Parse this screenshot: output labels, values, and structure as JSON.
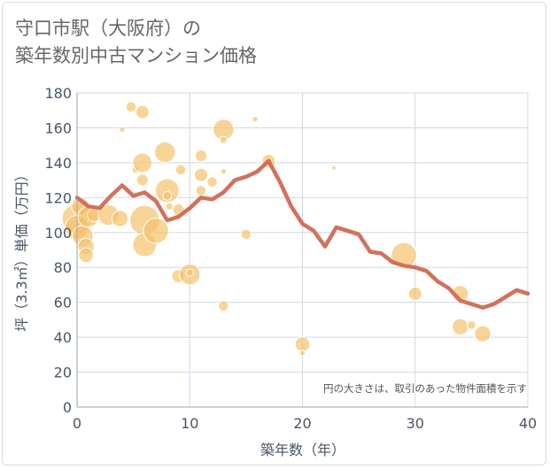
{
  "title_lines": [
    "守口市駅（大阪府）の",
    "築年数別中古マンション価格"
  ],
  "chart_data": {
    "type": "scatter",
    "xlabel": "築年数（年）",
    "ylabel": "坪（3.3㎡）単価（万円）",
    "xlim": [
      0,
      40
    ],
    "ylim": [
      0,
      180
    ],
    "x_ticks": [
      0,
      10,
      20,
      30,
      40
    ],
    "y_ticks": [
      0,
      20,
      40,
      60,
      80,
      100,
      120,
      140,
      160,
      180
    ],
    "grid": true,
    "note": "円の大きさは、取引のあった物件面積を示す",
    "colors": {
      "bubble": "#f5c26b",
      "line": "#d4705a",
      "grid": "#cfd8e3",
      "axis_text": "#4a5568"
    },
    "bubbles": [
      {
        "x": 0,
        "y": 108,
        "size": 18
      },
      {
        "x": 0,
        "y": 103,
        "size": 14
      },
      {
        "x": 0.3,
        "y": 115,
        "size": 10
      },
      {
        "x": 0.5,
        "y": 98,
        "size": 12
      },
      {
        "x": 0.8,
        "y": 92,
        "size": 9
      },
      {
        "x": 0.8,
        "y": 87,
        "size": 8
      },
      {
        "x": 1,
        "y": 109,
        "size": 12
      },
      {
        "x": 1.5,
        "y": 110,
        "size": 7
      },
      {
        "x": 2.8,
        "y": 110,
        "size": 12
      },
      {
        "x": 3.8,
        "y": 108,
        "size": 9
      },
      {
        "x": 4,
        "y": 159,
        "size": 2
      },
      {
        "x": 4.8,
        "y": 172,
        "size": 5
      },
      {
        "x": 5.2,
        "y": 136,
        "size": 3
      },
      {
        "x": 5.8,
        "y": 169,
        "size": 7
      },
      {
        "x": 5.8,
        "y": 140,
        "size": 11
      },
      {
        "x": 5.8,
        "y": 130,
        "size": 6
      },
      {
        "x": 6,
        "y": 107,
        "size": 18
      },
      {
        "x": 6,
        "y": 93,
        "size": 14
      },
      {
        "x": 7,
        "y": 101,
        "size": 15
      },
      {
        "x": 7.8,
        "y": 146,
        "size": 12
      },
      {
        "x": 8,
        "y": 124,
        "size": 14
      },
      {
        "x": 8,
        "y": 121,
        "size": 4
      },
      {
        "x": 8.2,
        "y": 115,
        "size": 3
      },
      {
        "x": 9,
        "y": 113,
        "size": 6
      },
      {
        "x": 9.2,
        "y": 136,
        "size": 5
      },
      {
        "x": 9,
        "y": 75,
        "size": 7
      },
      {
        "x": 10,
        "y": 76,
        "size": 12
      },
      {
        "x": 10,
        "y": 77,
        "size": 3
      },
      {
        "x": 11,
        "y": 144,
        "size": 6
      },
      {
        "x": 11,
        "y": 133,
        "size": 7
      },
      {
        "x": 11,
        "y": 124,
        "size": 5
      },
      {
        "x": 12,
        "y": 129,
        "size": 5
      },
      {
        "x": 13,
        "y": 159,
        "size": 12
      },
      {
        "x": 13,
        "y": 153,
        "size": 3
      },
      {
        "x": 13,
        "y": 135,
        "size": 2
      },
      {
        "x": 13,
        "y": 58,
        "size": 5
      },
      {
        "x": 15,
        "y": 99,
        "size": 5
      },
      {
        "x": 15.8,
        "y": 165,
        "size": 2
      },
      {
        "x": 17,
        "y": 141,
        "size": 7
      },
      {
        "x": 20,
        "y": 36,
        "size": 8
      },
      {
        "x": 20,
        "y": 31,
        "size": 2
      },
      {
        "x": 22.8,
        "y": 137,
        "size": 1
      },
      {
        "x": 29,
        "y": 87,
        "size": 15
      },
      {
        "x": 30,
        "y": 65,
        "size": 7
      },
      {
        "x": 34,
        "y": 65,
        "size": 9
      },
      {
        "x": 34,
        "y": 46,
        "size": 9
      },
      {
        "x": 35,
        "y": 47,
        "size": 4
      },
      {
        "x": 36,
        "y": 42,
        "size": 9
      }
    ],
    "series": [
      {
        "x": [
          0,
          1,
          2,
          3,
          4,
          5,
          6,
          7,
          8,
          9,
          10,
          11,
          12,
          13,
          14,
          15,
          16,
          17,
          18,
          19,
          20,
          21,
          22,
          23,
          24,
          25,
          26,
          27,
          28,
          29,
          30,
          31,
          32,
          33,
          34,
          35,
          36,
          37,
          38,
          39,
          40
        ],
        "y": [
          120,
          115,
          114,
          121,
          127,
          121,
          123,
          118,
          107,
          109,
          114,
          120,
          119,
          123,
          130,
          132,
          135,
          141,
          129,
          115,
          105,
          101,
          92,
          103,
          101,
          99,
          89,
          88,
          83,
          81,
          80,
          78,
          72,
          68,
          61,
          59,
          57,
          59,
          63,
          67,
          65
        ]
      }
    ]
  }
}
